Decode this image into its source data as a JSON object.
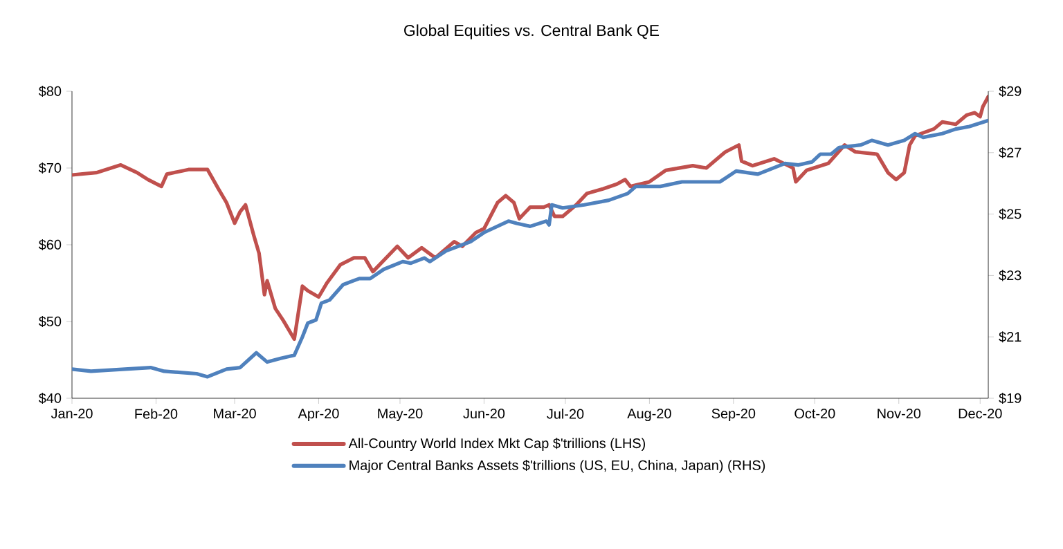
{
  "chart_data": {
    "type": "line",
    "title": "Global Equities vs. Central Bank QE",
    "legend": "bottom",
    "line_style": "solid",
    "marker": "none",
    "xlim": [
      "2020-01-01",
      "2020-12-04"
    ],
    "xticks": [
      {
        "value": "2020-01-01",
        "label": "Jan-20"
      },
      {
        "value": "2020-02-01",
        "label": "Feb-20"
      },
      {
        "value": "2020-03-01",
        "label": "Mar-20"
      },
      {
        "value": "2020-04-01",
        "label": "Apr-20"
      },
      {
        "value": "2020-05-01",
        "label": "May-20"
      },
      {
        "value": "2020-06-01",
        "label": "Jun-20"
      },
      {
        "value": "2020-07-01",
        "label": "Jul-20"
      },
      {
        "value": "2020-08-01",
        "label": "Aug-20"
      },
      {
        "value": "2020-09-01",
        "label": "Sep-20"
      },
      {
        "value": "2020-10-01",
        "label": "Oct-20"
      },
      {
        "value": "2020-11-01",
        "label": "Nov-20"
      },
      {
        "value": "2020-12-01",
        "label": "Dec-20"
      }
    ],
    "ylim": [
      40,
      80
    ],
    "yticks": [
      {
        "value": 40,
        "label": "$40"
      },
      {
        "value": 50,
        "label": "$50"
      },
      {
        "value": 60,
        "label": "$60"
      },
      {
        "value": 70,
        "label": "$70"
      },
      {
        "value": 80,
        "label": "$80"
      }
    ],
    "y2lim": [
      19,
      29
    ],
    "y2ticks": [
      {
        "value": 19,
        "label": "$19"
      },
      {
        "value": 21,
        "label": "$21"
      },
      {
        "value": 23,
        "label": "$23"
      },
      {
        "value": 25,
        "label": "$25"
      },
      {
        "value": 27,
        "label": "$27"
      },
      {
        "value": 29,
        "label": "$29"
      }
    ],
    "series": [
      {
        "name": "All-Country World Index  Mkt Cap $'trillions (LHS)",
        "color": "#c0504d",
        "axis": "y",
        "x": [
          "2020-01-01",
          "2020-01-10",
          "2020-01-19",
          "2020-01-25",
          "2020-01-29",
          "2020-02-03",
          "2020-02-05",
          "2020-02-13",
          "2020-02-20",
          "2020-02-24",
          "2020-02-27",
          "2020-03-01",
          "2020-03-03",
          "2020-03-05",
          "2020-03-08",
          "2020-03-10",
          "2020-03-12",
          "2020-03-13",
          "2020-03-16",
          "2020-03-19",
          "2020-03-23",
          "2020-03-26",
          "2020-03-28",
          "2020-04-01",
          "2020-04-04",
          "2020-04-09",
          "2020-04-14",
          "2020-04-18",
          "2020-04-21",
          "2020-04-30",
          "2020-05-04",
          "2020-05-09",
          "2020-05-14",
          "2020-05-21",
          "2020-05-24",
          "2020-05-29",
          "2020-06-01",
          "2020-06-06",
          "2020-06-09",
          "2020-06-12",
          "2020-06-14",
          "2020-06-18",
          "2020-06-23",
          "2020-06-25",
          "2020-06-27",
          "2020-06-30",
          "2020-07-05",
          "2020-07-09",
          "2020-07-15",
          "2020-07-20",
          "2020-07-23",
          "2020-07-25",
          "2020-08-01",
          "2020-08-07",
          "2020-08-12",
          "2020-08-17",
          "2020-08-22",
          "2020-08-28",
          "2020-08-29",
          "2020-09-03",
          "2020-09-04",
          "2020-09-08",
          "2020-09-16",
          "2020-09-23",
          "2020-09-24",
          "2020-09-28",
          "2020-10-06",
          "2020-10-12",
          "2020-10-16",
          "2020-10-24",
          "2020-10-28",
          "2020-10-31",
          "2020-11-03",
          "2020-11-05",
          "2020-11-07",
          "2020-11-14",
          "2020-11-17",
          "2020-11-22",
          "2020-11-26",
          "2020-11-29",
          "2020-12-01",
          "2020-12-02",
          "2020-12-04"
        ],
        "values": [
          69.1,
          69.4,
          70.4,
          69.4,
          68.5,
          67.6,
          69.2,
          69.8,
          69.8,
          67.3,
          65.5,
          62.8,
          64.3,
          65.2,
          61.3,
          58.9,
          53.5,
          55.3,
          51.7,
          50.1,
          47.7,
          54.6,
          54.0,
          53.2,
          55.0,
          57.4,
          58.3,
          58.3,
          56.5,
          59.8,
          58.3,
          59.6,
          58.3,
          60.4,
          59.8,
          61.6,
          62.1,
          65.5,
          66.4,
          65.5,
          63.4,
          64.9,
          64.9,
          65.2,
          63.7,
          63.7,
          65.2,
          66.7,
          67.3,
          67.9,
          68.5,
          67.6,
          68.2,
          69.7,
          70.0,
          70.3,
          70.0,
          71.8,
          72.1,
          73.0,
          70.9,
          70.3,
          71.2,
          70.0,
          68.2,
          69.7,
          70.6,
          73.0,
          72.1,
          71.8,
          69.4,
          68.5,
          69.4,
          73.0,
          74.2,
          75.1,
          76.0,
          75.7,
          76.9,
          77.2,
          76.7,
          78.0,
          79.3
        ]
      },
      {
        "name": "Major Central Banks Assets $'trillions (US, EU, China, Japan) (RHS)",
        "color": "#4f81bd",
        "axis": "y2",
        "x": [
          "2020-01-01",
          "2020-01-08",
          "2020-01-30",
          "2020-02-04",
          "2020-02-16",
          "2020-02-20",
          "2020-02-27",
          "2020-03-03",
          "2020-03-09",
          "2020-03-13",
          "2020-03-18",
          "2020-03-23",
          "2020-03-26",
          "2020-03-28",
          "2020-03-31",
          "2020-04-02",
          "2020-04-05",
          "2020-04-10",
          "2020-04-16",
          "2020-04-20",
          "2020-04-25",
          "2020-05-02",
          "2020-05-05",
          "2020-05-10",
          "2020-05-12",
          "2020-05-18",
          "2020-05-27",
          "2020-06-01",
          "2020-06-10",
          "2020-06-13",
          "2020-06-18",
          "2020-06-24",
          "2020-06-25",
          "2020-06-26",
          "2020-06-30",
          "2020-07-08",
          "2020-07-17",
          "2020-07-24",
          "2020-07-27",
          "2020-08-05",
          "2020-08-13",
          "2020-08-23",
          "2020-08-27",
          "2020-09-02",
          "2020-09-10",
          "2020-09-20",
          "2020-09-25",
          "2020-09-30",
          "2020-10-03",
          "2020-10-07",
          "2020-10-10",
          "2020-10-18",
          "2020-10-22",
          "2020-10-28",
          "2020-11-03",
          "2020-11-07",
          "2020-11-10",
          "2020-11-17",
          "2020-11-22",
          "2020-11-27",
          "2020-12-04"
        ],
        "values": [
          19.95,
          19.88,
          20.0,
          19.88,
          19.8,
          19.7,
          19.95,
          20.0,
          20.48,
          20.18,
          20.3,
          20.4,
          21.0,
          21.45,
          21.55,
          22.1,
          22.2,
          22.7,
          22.9,
          22.9,
          23.2,
          23.45,
          23.4,
          23.57,
          23.45,
          23.8,
          24.1,
          24.4,
          24.77,
          24.7,
          24.6,
          24.77,
          24.65,
          25.3,
          25.2,
          25.3,
          25.45,
          25.67,
          25.9,
          25.9,
          26.05,
          26.05,
          26.05,
          26.4,
          26.3,
          26.65,
          26.6,
          26.7,
          26.95,
          26.95,
          27.17,
          27.25,
          27.4,
          27.25,
          27.4,
          27.62,
          27.5,
          27.62,
          27.77,
          27.85,
          28.05
        ]
      }
    ]
  }
}
